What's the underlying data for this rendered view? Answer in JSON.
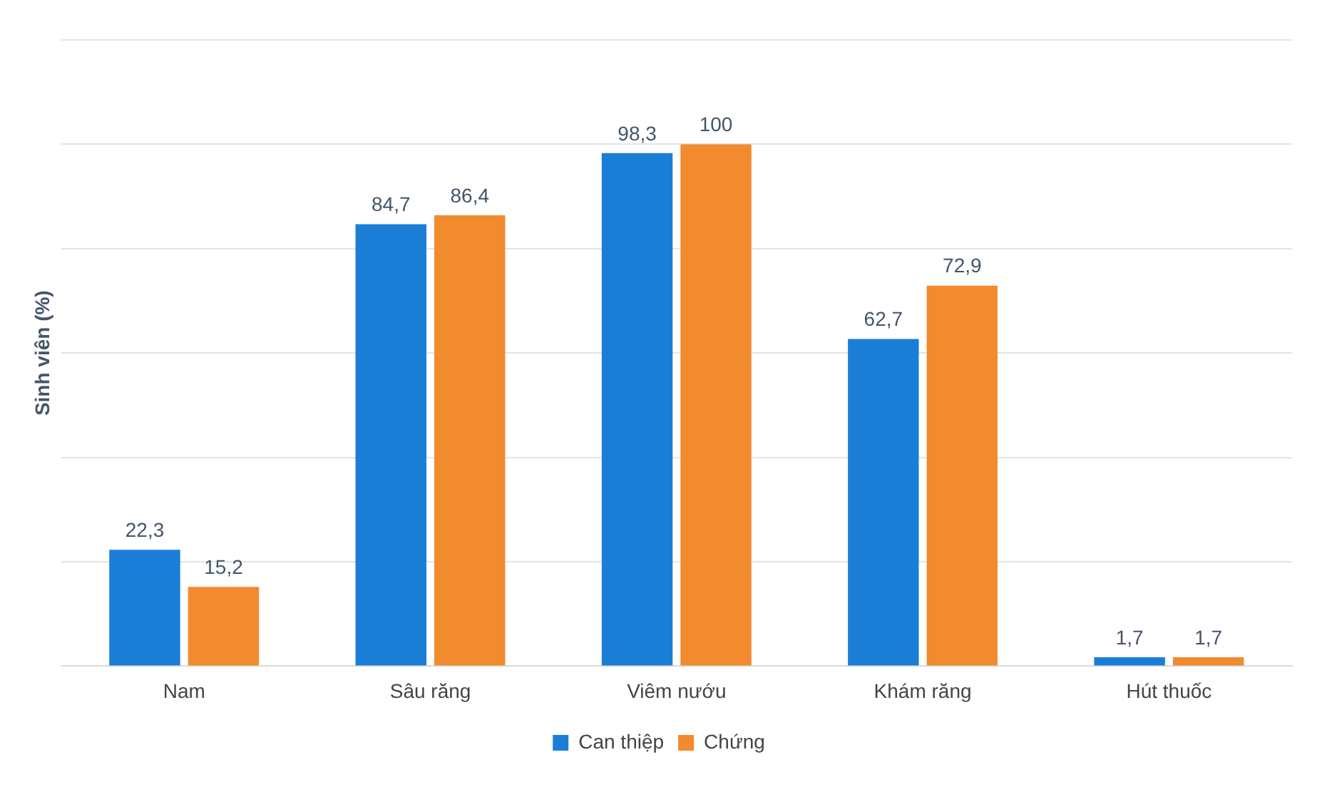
{
  "chart_data": {
    "type": "bar",
    "ylabel": "Sinh viên (%)",
    "categories": [
      "Nam",
      "Sâu răng",
      "Viêm nướu",
      "Khám răng",
      "Hút thuốc"
    ],
    "series": [
      {
        "name": "Can thiệp",
        "color": "#1b7ed6",
        "values": [
          22.3,
          84.7,
          98.3,
          62.7,
          1.7
        ],
        "value_labels": [
          "22,3",
          "84,7",
          "98,3",
          "62,7",
          "1,7"
        ]
      },
      {
        "name": "Chứng",
        "color": "#f28a2e",
        "values": [
          15.2,
          86.4,
          100,
          72.9,
          1.7
        ],
        "value_labels": [
          "15,2",
          "86,4",
          "100",
          "72,9",
          "1,7"
        ]
      }
    ],
    "ylim": [
      0,
      120
    ],
    "yticks": [
      {
        "value": 0,
        "label": null
      },
      {
        "value": 20,
        "label": null
      },
      {
        "value": 40,
        "label": null
      },
      {
        "value": 60,
        "label": null
      },
      {
        "value": 80,
        "label": null
      },
      {
        "value": 100,
        "label": null
      },
      {
        "value": 120,
        "label": null
      }
    ],
    "tick_labels": "x",
    "grid": "y",
    "legend": "bottom"
  }
}
